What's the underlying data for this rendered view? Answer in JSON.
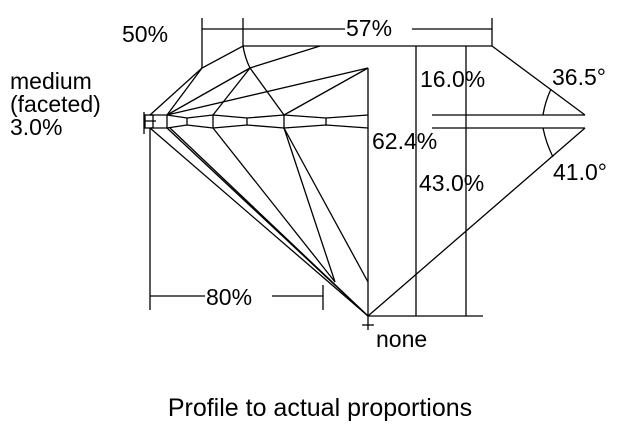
{
  "labels": {
    "girdle_line1": "medium",
    "girdle_line2": "(faceted)",
    "girdle_thickness": "3.0%",
    "star_length": "50%",
    "table": "57%",
    "crown_height": "16.0%",
    "crown_angle": "36.5°",
    "total_depth": "62.4%",
    "pavilion_depth": "43.0%",
    "pavilion_angle": "41.0°",
    "lower_half_length": "80%",
    "culet": "none"
  },
  "caption": "Profile to actual proportions",
  "colors": {
    "line": "#000000",
    "background": "#ffffff"
  }
}
